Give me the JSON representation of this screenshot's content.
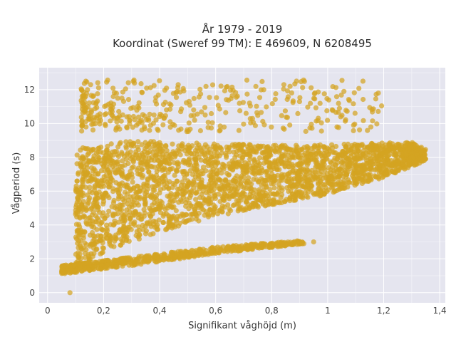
{
  "chart_data": {
    "type": "scatter",
    "title_line1": "År 1979 - 2019",
    "title_line2": "Koordinat (Sweref 99 TM): E 469609, N 6208495",
    "xlabel": "Signifikant våghöjd (m)",
    "ylabel": "Vågperiod (s)",
    "xlim": [
      -0.03,
      1.42
    ],
    "ylim": [
      -0.6,
      13.3
    ],
    "x_ticks": [
      0,
      0.2,
      0.4,
      0.6,
      0.8,
      1,
      1.2,
      1.4
    ],
    "x_tick_labels": [
      "0",
      "0,2",
      "0,4",
      "0,6",
      "0,8",
      "1",
      "1,2",
      "1,4"
    ],
    "y_ticks": [
      0,
      2,
      4,
      6,
      8,
      10,
      12
    ],
    "y_tick_labels": [
      "0",
      "2",
      "4",
      "6",
      "8",
      "10",
      "12"
    ],
    "grid": true,
    "marker_color": "#D4A421",
    "plot_background": "#E5E5EF",
    "data_regions": [
      {
        "name": "main-cloud",
        "x_range": [
          0.1,
          1.35
        ],
        "y_lower_at_x": [
          [
            0.1,
            1.3
          ],
          [
            0.2,
            2.4
          ],
          [
            0.4,
            3.6
          ],
          [
            0.6,
            4.5
          ],
          [
            0.8,
            5.2
          ],
          [
            1.0,
            5.8
          ],
          [
            1.2,
            6.8
          ],
          [
            1.35,
            7.8
          ]
        ],
        "y_upper_at_x": [
          [
            0.1,
            8.5
          ],
          [
            0.3,
            9.0
          ],
          [
            0.6,
            8.8
          ],
          [
            0.9,
            8.7
          ],
          [
            1.1,
            8.8
          ],
          [
            1.3,
            8.9
          ],
          [
            1.35,
            8.5
          ]
        ]
      },
      {
        "name": "low-period-band",
        "x_range": [
          0.05,
          0.92
        ],
        "y_lower_at_x": [
          [
            0.05,
            1.1
          ],
          [
            0.3,
            1.6
          ],
          [
            0.6,
            2.3
          ],
          [
            0.92,
            2.9
          ]
        ],
        "y_upper_at_x": [
          [
            0.05,
            1.6
          ],
          [
            0.3,
            2.1
          ],
          [
            0.6,
            2.7
          ],
          [
            0.92,
            3.1
          ]
        ]
      },
      {
        "name": "high-period-cluster",
        "x_range": [
          0.12,
          1.2
        ],
        "y_range": [
          9.5,
          12.6
        ]
      }
    ],
    "outliers": [
      {
        "x": 0.08,
        "y": 0.0
      },
      {
        "x": 0.95,
        "y": 3.0
      }
    ]
  }
}
